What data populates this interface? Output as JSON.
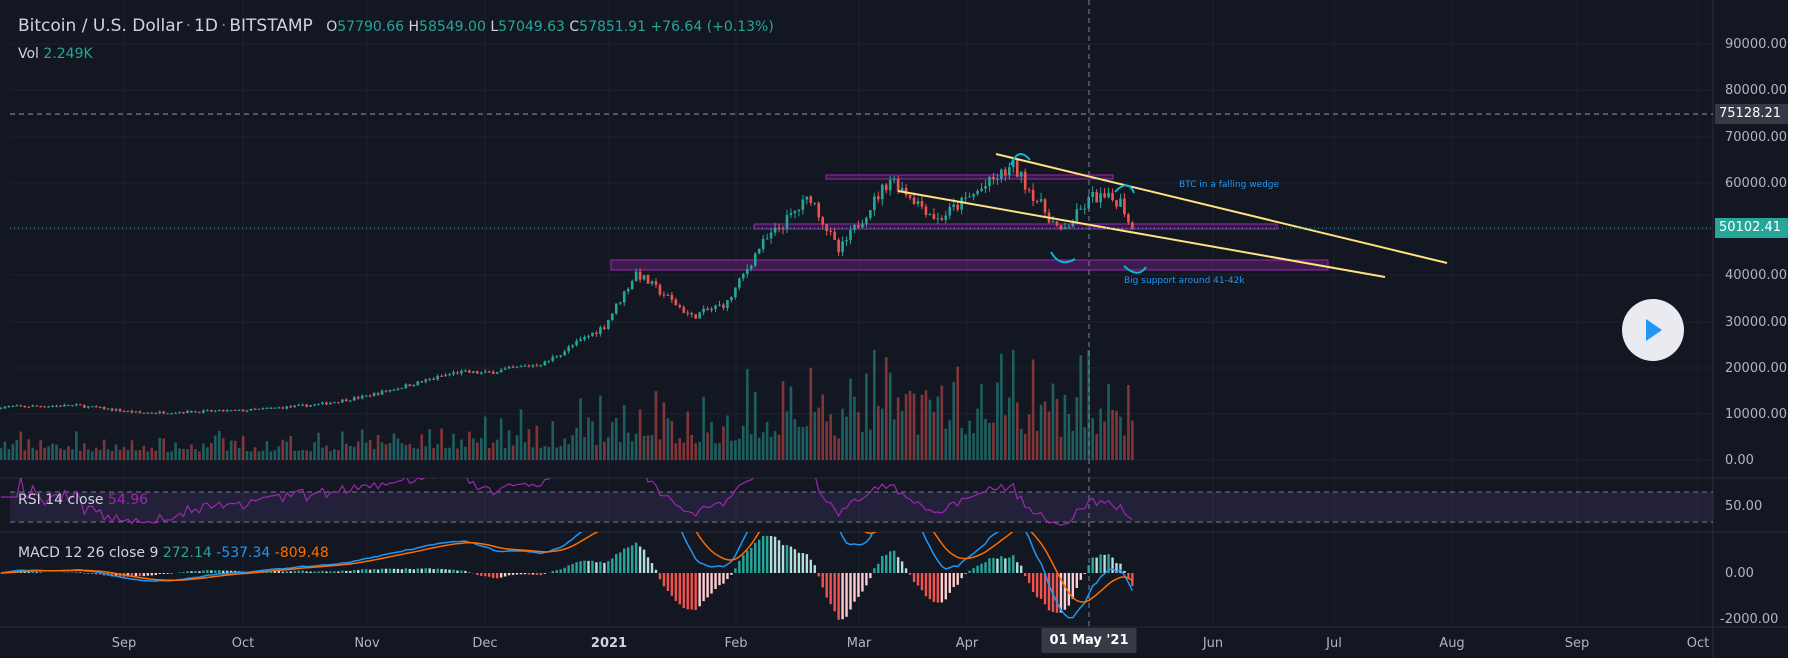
{
  "header": {
    "symbol": "Bitcoin / U.S. Dollar",
    "interval": "1D",
    "exchange": "BITSTAMP",
    "open_label": "O",
    "open": "57790.66",
    "high_label": "H",
    "high": "58549.00",
    "low_label": "L",
    "low": "57049.63",
    "close_label": "C",
    "close": "57851.91",
    "change": "+76.64 (+0.13%)"
  },
  "volume": {
    "label": "Vol",
    "value": "2.249K"
  },
  "rsi": {
    "label": "RSI 14 close",
    "value": "54.96",
    "ticks": [
      "50.00"
    ]
  },
  "macd": {
    "label": "MACD 12 26 close 9",
    "hist": "272.14",
    "macd": "-537.34",
    "signal": "-809.48",
    "ticks": [
      "0.00",
      "-2000.00"
    ]
  },
  "price_axis": {
    "ticks": [
      "90000.00",
      "80000.00",
      "70000.00",
      "60000.00",
      "50000.00",
      "40000.00",
      "30000.00",
      "20000.00",
      "10000.00",
      "0.00"
    ],
    "crosshair_tag": "75128.21",
    "last_price_tag": "50102.41"
  },
  "time_axis": {
    "ticks": [
      "Sep",
      "Oct",
      "Nov",
      "Dec",
      "2021",
      "Feb",
      "Mar",
      "Apr",
      "Jun",
      "Jul",
      "Aug",
      "Sep",
      "Oct"
    ],
    "crosshair_tag": "01 May '21"
  },
  "annotations": {
    "wedge": "BTC in a falling wedge",
    "support": "Big support around 41-42k"
  },
  "colors": {
    "background": "#131722",
    "up": "#26a69a",
    "down": "#ef5350",
    "macd": "#2196f3",
    "signal": "#ff6d00",
    "rsi": "#9c27b0",
    "trendline": "#ffe082",
    "zone": "#9c27b0",
    "accent_tag": "#26a69a"
  },
  "chart_data": {
    "type": "candlestick",
    "price_anchors": [
      [
        "2020-08-01",
        11500
      ],
      [
        "2020-08-20",
        11800
      ],
      [
        "2020-09-05",
        10200
      ],
      [
        "2020-10-01",
        10700
      ],
      [
        "2020-10-20",
        12000
      ],
      [
        "2020-11-01",
        13800
      ],
      [
        "2020-11-24",
        19000
      ],
      [
        "2020-12-01",
        18800
      ],
      [
        "2020-12-16",
        21000
      ],
      [
        "2020-12-31",
        29000
      ],
      [
        "2021-01-08",
        40500
      ],
      [
        "2021-01-22",
        31000
      ],
      [
        "2021-01-31",
        34000
      ],
      [
        "2021-02-08",
        46000
      ],
      [
        "2021-02-21",
        57000
      ],
      [
        "2021-02-28",
        45000
      ],
      [
        "2021-03-13",
        61000
      ],
      [
        "2021-03-25",
        52000
      ],
      [
        "2021-04-13",
        63500
      ],
      [
        "2021-04-25",
        49000
      ],
      [
        "2021-05-03",
        57000
      ],
      [
        "2021-05-10",
        56000
      ],
      [
        "2021-05-13",
        50102.41
      ]
    ]
  }
}
